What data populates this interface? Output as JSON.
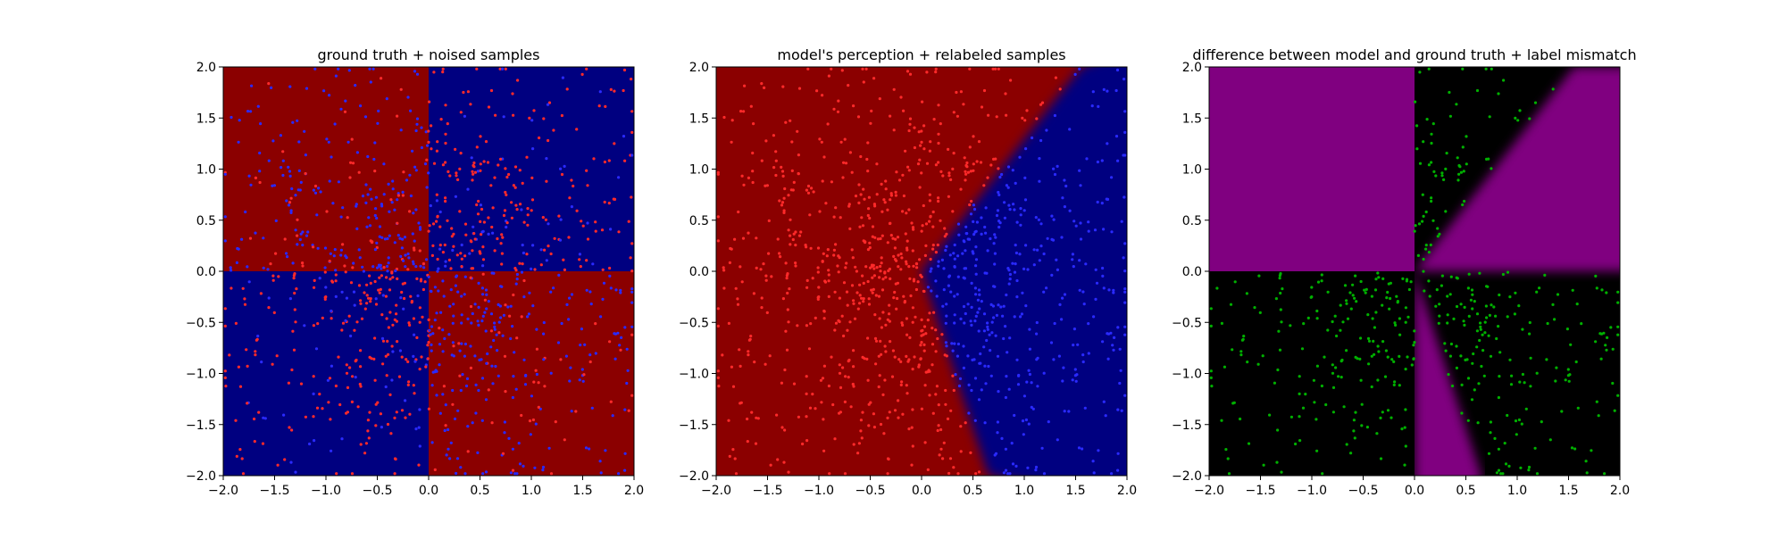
{
  "colors": {
    "class_a_region": "#8b0000",
    "class_b_region": "#000080",
    "class_a_point": "#ff2a2a",
    "class_b_point": "#2a2aff",
    "mismatch_region": "#800080",
    "match_region": "#000000",
    "mismatch_point": "#00b000"
  },
  "chart_data": [
    {
      "type": "heatmap",
      "title": "ground truth + noised samples",
      "xlabel": "",
      "ylabel": "",
      "xlim": [
        -2.0,
        2.0
      ],
      "ylim": [
        -2.0,
        2.0
      ],
      "xticks": [
        "−2.0",
        "−1.5",
        "−1.0",
        "−0.5",
        "0.0",
        "0.5",
        "1.0",
        "1.5",
        "2.0"
      ],
      "yticks": [
        "−2.0",
        "−1.5",
        "−1.0",
        "−0.5",
        "0.0",
        "0.5",
        "1.0",
        "1.5",
        "2.0"
      ],
      "tick_values": [
        -2.0,
        -1.5,
        -1.0,
        -0.5,
        0.0,
        0.5,
        1.0,
        1.5,
        2.0
      ],
      "regions": "xor quadrants: red where x*y<0, blue where x*y>0",
      "series": [
        {
          "name": "",
          "color": "red points",
          "count": 300
        },
        {
          "name": "",
          "color": "blue points",
          "count": 400
        }
      ],
      "grid": false,
      "legend": "none"
    },
    {
      "type": "heatmap",
      "title": "model's perception + relabeled samples",
      "xlabel": "",
      "ylabel": "",
      "xlim": [
        -2.0,
        2.0
      ],
      "ylim": [
        -2.0,
        2.0
      ],
      "xticks": [
        "−2.0",
        "−1.5",
        "−1.0",
        "−0.5",
        "0.0",
        "0.5",
        "1.0",
        "1.5",
        "2.0"
      ],
      "yticks": [
        "−2.0",
        "−1.5",
        "−1.0",
        "−0.5",
        "0.0",
        "0.5",
        "1.0",
        "1.5",
        "2.0"
      ],
      "tick_values": [
        -2.0,
        -1.5,
        -1.0,
        -0.5,
        0.0,
        0.5,
        1.0,
        1.5,
        2.0
      ],
      "regions": "red left of boundary through (0,0); upper branch to (1.55,2.0), lower branch to (0.65,-2.0); blue on the right",
      "series": [
        {
          "name": "",
          "color": "red points",
          "count": 500
        },
        {
          "name": "",
          "color": "blue points",
          "count": 600
        }
      ],
      "grid": false,
      "legend": "none"
    },
    {
      "type": "heatmap",
      "title": "difference between model and ground truth + label mismatch",
      "xlabel": "",
      "ylabel": "",
      "xlim": [
        -2.0,
        2.0
      ],
      "ylim": [
        -2.0,
        2.0
      ],
      "xticks": [
        "−2.0",
        "−1.5",
        "−1.0",
        "−0.5",
        "0.0",
        "0.5",
        "1.0",
        "1.5",
        "2.0"
      ],
      "yticks": [
        "−2.0",
        "−1.5",
        "−1.0",
        "−0.5",
        "0.0",
        "0.5",
        "1.0",
        "1.5",
        "2.0"
      ],
      "tick_values": [
        -2.0,
        -1.5,
        -1.0,
        -0.5,
        0.0,
        0.5,
        1.0,
        1.5,
        2.0
      ],
      "regions": "magenta where model disagrees with ground truth (upper-left quadrant, wedge right of the upper boundary, wedge left of the lower boundary), black elsewhere",
      "series": [
        {
          "name": "",
          "color": "green points",
          "count": 520
        }
      ],
      "grid": false,
      "legend": "none"
    }
  ]
}
